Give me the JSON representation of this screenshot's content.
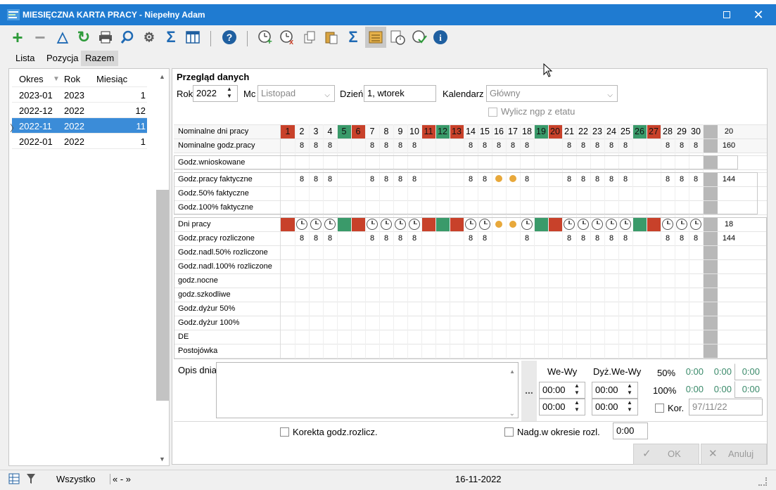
{
  "window": {
    "title": "MIESIĘCZNA KARTA PRACY - Niepełny Adam"
  },
  "toolbar": {
    "icons": [
      "add-icon",
      "remove-icon",
      "filter-delta-icon",
      "refresh-icon",
      "print-icon",
      "search-icon",
      "settings-icon",
      "sum-icon",
      "columns-icon",
      "help-icon",
      "clock-add-icon",
      "clock-remove-icon",
      "copy-icon",
      "paste-icon",
      "sum2-icon",
      "calendar-list-icon",
      "schedule-icon",
      "clock-check-icon",
      "info-icon"
    ]
  },
  "tabs": [
    "Lista",
    "Pozycja",
    "Razem"
  ],
  "list": {
    "headers": {
      "okres": "Okres",
      "rok": "Rok",
      "miesiac": "Miesiąc"
    },
    "rows": [
      {
        "okres": "2023-01",
        "rok": "2023",
        "miesiac": "1"
      },
      {
        "okres": "2022-12",
        "rok": "2022",
        "miesiac": "12"
      },
      {
        "okres": "2022-11",
        "rok": "2022",
        "miesiac": "11"
      },
      {
        "okres": "2022-01",
        "rok": "2022",
        "miesiac": "1"
      }
    ],
    "selected_index": 2
  },
  "form": {
    "section_title": "Przegląd danych",
    "rok_label": "Rok",
    "rok_value": "2022",
    "mc_label": "Mc",
    "mc_value": "Listopad",
    "dzien_label": "Dzień",
    "dzien_value": "1, wtorek",
    "kalendarz_label": "Kalendarz",
    "kalendarz_value": "Główny",
    "wylicz_label": "Wylicz ngp z etatu"
  },
  "calendar": {
    "days": [
      "1",
      "2",
      "3",
      "4",
      "5",
      "6",
      "7",
      "8",
      "9",
      "10",
      "11",
      "12",
      "13",
      "14",
      "15",
      "16",
      "17",
      "18",
      "19",
      "20",
      "21",
      "22",
      "23",
      "24",
      "25",
      "26",
      "27",
      "28",
      "29",
      "30"
    ],
    "day_types": [
      "r",
      "",
      "",
      "",
      "g",
      "r",
      "",
      "",
      "",
      "",
      "r",
      "g",
      "r",
      "",
      "",
      "",
      "",
      "",
      "g",
      "r",
      "",
      "",
      "",
      "",
      "",
      "g",
      "r",
      "",
      "",
      ""
    ],
    "colors": {
      "red": "#c8412a",
      "green": "#3a9a6a",
      "total_grey": "#b8b8b8",
      "dot": "#e8a83a"
    },
    "nom_days_label": "Nominalne dni pracy",
    "nom_days_total": "20",
    "nom_hours_label": "Nominalne godz.pracy",
    "nom_hours_total": "160",
    "nom_hours": [
      "",
      "8",
      "8",
      "8",
      "",
      "",
      "8",
      "8",
      "8",
      "8",
      "",
      "",
      "",
      "8",
      "8",
      "8",
      "8",
      "8",
      "",
      "",
      "8",
      "8",
      "8",
      "8",
      "8",
      "",
      "",
      "8",
      "8",
      "8"
    ],
    "wnioskowane_label": "Godz.wnioskowane",
    "fakt_label": "Godz.pracy faktyczne",
    "fakt_total": "144",
    "fakt": [
      "",
      "8",
      "8",
      "8",
      "",
      "",
      "8",
      "8",
      "8",
      "8",
      "",
      "",
      "",
      "8",
      "8",
      "•",
      "•",
      "8",
      "",
      "",
      "8",
      "8",
      "8",
      "8",
      "8",
      "",
      "",
      "8",
      "8",
      "8"
    ],
    "fakt50_label": "Godz.50% faktyczne",
    "fakt100_label": "Godz.100% faktyczne",
    "dni_label": "Dni pracy",
    "dni_total": "18",
    "dni_marks": [
      "r",
      "c",
      "c",
      "c",
      "g",
      "r",
      "c",
      "c",
      "c",
      "c",
      "r",
      "g",
      "r",
      "c",
      "c",
      "•",
      "•",
      "c",
      "g",
      "r",
      "c",
      "c",
      "c",
      "c",
      "c",
      "g",
      "r",
      "c",
      "c",
      "c"
    ],
    "rozl_label": "Godz.pracy rozliczone",
    "rozl_total": "144",
    "rozl": [
      "",
      "8",
      "8",
      "8",
      "",
      "",
      "8",
      "8",
      "8",
      "8",
      "",
      "",
      "",
      "8",
      "8",
      "",
      "",
      "8",
      "",
      "",
      "8",
      "8",
      "8",
      "8",
      "8",
      "",
      "",
      "8",
      "8",
      "8"
    ],
    "extra_rows": [
      "Godz.nadl.50% rozliczone",
      "Godz.nadl.100% rozliczone",
      "godz.nocne",
      "godz.szkodliwe",
      "Godz.dyżur 50%",
      "Godz.dyżur 100%",
      "DE",
      "Postojówka"
    ]
  },
  "bottom": {
    "opis_label": "Opis dnia",
    "ellipsis": "...",
    "wewy_label": "We-Wy",
    "dyz_label": "Dyż.We-Wy",
    "wewy_in": "00:00",
    "wewy_out": "00:00",
    "dyz_in": "00:00",
    "dyz_out": "00:00",
    "p50_label": "50%",
    "p100_label": "100%",
    "p50": [
      "0:00",
      "0:00",
      "0:00"
    ],
    "p100": [
      "0:00",
      "0:00",
      "0:00"
    ],
    "kor_label": "Kor.",
    "kor_value": "97/11/22",
    "korekta_label": "Korekta godz.rozlicz.",
    "nadg_label": "Nadg.w okresie rozl.",
    "nadg_value": "0:00",
    "ok_label": "OK",
    "anuluj_label": "Anuluj"
  },
  "status": {
    "filter_label": "Wszystko",
    "nav": "« - »",
    "date": "16-11-2022"
  }
}
